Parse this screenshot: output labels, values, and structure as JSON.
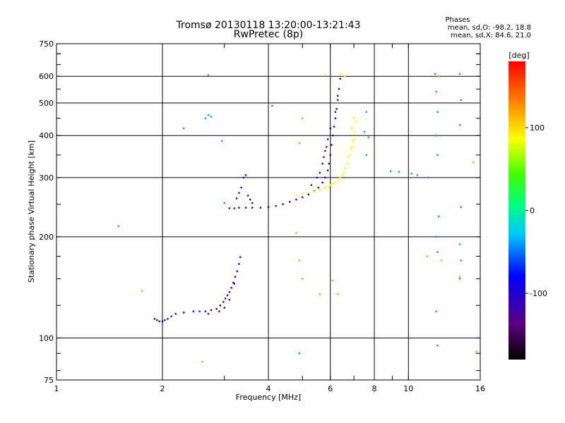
{
  "chart_data": {
    "type": "scatter",
    "title": "Tromsø 20130118 13:20:00-13:21:43",
    "subtitle": "RwPretec (8p)",
    "xlabel": "Frequency [MHz]",
    "ylabel": "Stationary phase Virtual Height [km]",
    "x_scale": "log",
    "y_scale": "log",
    "xlim": [
      1,
      16
    ],
    "ylim": [
      75,
      750
    ],
    "x_ticks": [
      1,
      2,
      4,
      6,
      8,
      10,
      16
    ],
    "x_tick_labels": [
      "1",
      "2",
      "4",
      "6",
      "8",
      "10",
      "16"
    ],
    "y_ticks": [
      75,
      100,
      200,
      300,
      400,
      500,
      600,
      750
    ],
    "y_tick_labels": [
      "75",
      "100",
      "200",
      "300",
      "400",
      "500",
      "600",
      "750"
    ],
    "grid": true,
    "colorbar": {
      "label": "[deg]",
      "range": [
        -180,
        180
      ],
      "ticks": [
        100,
        0,
        -100
      ],
      "tick_labels": [
        "100",
        "0",
        "-100"
      ]
    },
    "legend": {
      "title": "Phases",
      "lines": [
        "mean, sd,O: -98.2, 18.8",
        "mean, sd,X:  84.6, 21.0"
      ]
    },
    "series": [
      {
        "trace": "o-mode-low",
        "color_phase": -105,
        "points": [
          [
            1.9,
            114
          ],
          [
            1.93,
            113
          ],
          [
            1.96,
            112
          ],
          [
            2.0,
            112
          ],
          [
            2.03,
            113
          ],
          [
            2.07,
            114
          ],
          [
            2.12,
            116
          ],
          [
            2.18,
            118
          ],
          [
            2.3,
            119
          ],
          [
            2.45,
            120
          ],
          [
            2.55,
            120
          ],
          [
            2.65,
            120
          ],
          [
            2.75,
            121
          ],
          [
            2.85,
            122
          ],
          [
            2.92,
            125
          ],
          [
            2.98,
            128
          ],
          [
            3.02,
            131
          ],
          [
            3.06,
            134
          ],
          [
            3.1,
            137
          ],
          [
            3.14,
            141
          ],
          [
            3.18,
            146
          ],
          [
            3.22,
            152
          ],
          [
            3.26,
            158
          ],
          [
            3.3,
            166
          ],
          [
            3.33,
            174
          ],
          [
            2.9,
            120
          ],
          [
            3.0,
            123
          ],
          [
            2.7,
            118
          ],
          [
            3.1,
            130
          ],
          [
            3.2,
            145
          ]
        ]
      },
      {
        "trace": "o-mode-high",
        "color_phase": -110,
        "points": [
          [
            3.1,
            243
          ],
          [
            3.2,
            243
          ],
          [
            3.3,
            244
          ],
          [
            3.45,
            244
          ],
          [
            3.6,
            244
          ],
          [
            3.8,
            244
          ],
          [
            4.0,
            245
          ],
          [
            4.2,
            247
          ],
          [
            4.4,
            250
          ],
          [
            4.6,
            254
          ],
          [
            4.8,
            258
          ],
          [
            5.0,
            262
          ],
          [
            5.2,
            267
          ],
          [
            5.4,
            273
          ],
          [
            5.55,
            280
          ],
          [
            5.7,
            290
          ],
          [
            5.8,
            300
          ],
          [
            5.9,
            315
          ],
          [
            5.95,
            330
          ],
          [
            6.0,
            350
          ],
          [
            6.05,
            375
          ],
          [
            6.1,
            400
          ],
          [
            6.15,
            425
          ],
          [
            6.2,
            450
          ],
          [
            6.25,
            480
          ],
          [
            6.3,
            510
          ],
          [
            6.35,
            550
          ],
          [
            6.4,
            590
          ],
          [
            3.3,
            270
          ],
          [
            3.35,
            280
          ],
          [
            3.4,
            300
          ],
          [
            3.45,
            305
          ],
          [
            3.25,
            260
          ],
          [
            3.5,
            265
          ],
          [
            3.55,
            258
          ],
          [
            3.6,
            252
          ],
          [
            5.3,
            285
          ],
          [
            5.5,
            300
          ],
          [
            5.7,
            330
          ],
          [
            5.8,
            360
          ],
          [
            5.9,
            390
          ],
          [
            5.6,
            310
          ],
          [
            5.75,
            345
          ],
          [
            5.85,
            370
          ],
          [
            6.0,
            420
          ],
          [
            6.2,
            470
          ],
          [
            6.3,
            525
          ]
        ]
      },
      {
        "trace": "x-mode",
        "color_phase": 85,
        "points": [
          [
            4.8,
            265
          ],
          [
            5.0,
            268
          ],
          [
            5.2,
            270
          ],
          [
            5.4,
            272
          ],
          [
            5.6,
            275
          ],
          [
            5.8,
            280
          ],
          [
            6.0,
            285
          ],
          [
            6.2,
            290
          ],
          [
            6.4,
            300
          ],
          [
            6.55,
            310
          ],
          [
            6.7,
            330
          ],
          [
            6.8,
            350
          ],
          [
            6.9,
            370
          ],
          [
            7.0,
            390
          ],
          [
            7.05,
            410
          ],
          [
            7.1,
            440
          ],
          [
            6.6,
            320
          ],
          [
            6.75,
            345
          ],
          [
            6.85,
            365
          ],
          [
            6.95,
            385
          ],
          [
            6.5,
            305
          ],
          [
            6.3,
            295
          ],
          [
            6.1,
            288
          ],
          [
            5.9,
            282
          ],
          [
            6.9,
            420
          ],
          [
            7.0,
            450
          ],
          [
            6.6,
            600
          ],
          [
            6.4,
            610
          ],
          [
            5.8,
            610
          ]
        ]
      },
      {
        "trace": "scatter",
        "color_phase": -40,
        "points": [
          [
            1.5,
            215
          ],
          [
            2.3,
            420
          ],
          [
            2.65,
            450
          ],
          [
            2.7,
            460
          ],
          [
            2.75,
            455
          ],
          [
            2.95,
            385
          ],
          [
            3.0,
            252
          ],
          [
            4.1,
            490
          ],
          [
            4.9,
            90
          ],
          [
            8.9,
            313
          ],
          [
            9.4,
            312
          ],
          [
            10.2,
            308
          ],
          [
            10.6,
            305
          ],
          [
            11.4,
            300
          ],
          [
            11.9,
            610
          ],
          [
            12.0,
            540
          ],
          [
            12.1,
            470
          ],
          [
            12.0,
            400
          ],
          [
            12.1,
            350
          ],
          [
            12.2,
            230
          ],
          [
            12.0,
            200
          ],
          [
            12.1,
            180
          ],
          [
            12.0,
            120
          ],
          [
            12.1,
            95
          ],
          [
            14.0,
            610
          ],
          [
            14.1,
            510
          ],
          [
            14.0,
            430
          ],
          [
            14.1,
            245
          ],
          [
            14.0,
            190
          ],
          [
            14.1,
            170
          ],
          [
            14.0,
            150
          ],
          [
            2.7,
            605
          ],
          [
            7.6,
            470
          ],
          [
            7.5,
            410
          ],
          [
            7.7,
            395
          ],
          [
            7.6,
            350
          ]
        ]
      },
      {
        "trace": "scatter-warm",
        "color_phase": 120,
        "points": [
          [
            1.75,
            138
          ],
          [
            2.6,
            85
          ],
          [
            4.8,
            205
          ],
          [
            4.9,
            170
          ],
          [
            5.0,
            150
          ],
          [
            5.6,
            135
          ],
          [
            6.1,
            148
          ],
          [
            6.3,
            135
          ],
          [
            11.3,
            175
          ],
          [
            12.4,
            170
          ],
          [
            15.3,
            333
          ],
          [
            15.6,
            91
          ],
          [
            14.0,
            152
          ],
          [
            12.2,
            600
          ],
          [
            5.0,
            450
          ],
          [
            4.9,
            380
          ]
        ]
      }
    ]
  }
}
